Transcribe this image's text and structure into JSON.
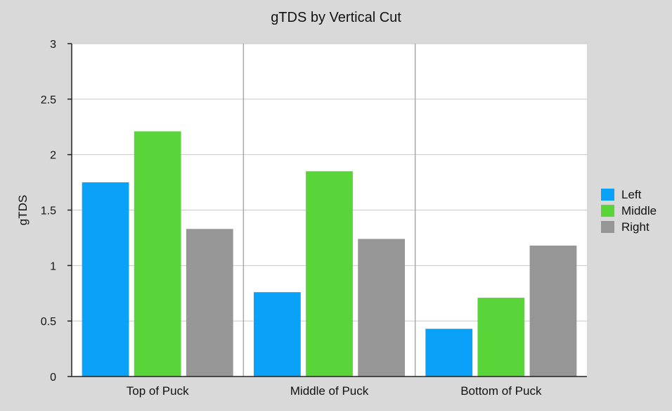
{
  "chart_data": {
    "type": "bar",
    "title": "gTDS by Vertical Cut",
    "xlabel": "",
    "ylabel": "gTDS",
    "ylim": [
      0,
      3
    ],
    "yticks": [
      "0",
      "0.5",
      "1",
      "1.5",
      "2",
      "2.5",
      "3"
    ],
    "categories": [
      "Top of Puck",
      "Middle of Puck",
      "Bottom of Puck"
    ],
    "series": [
      {
        "name": "Left",
        "color": "#0aa2f8",
        "values": [
          1.75,
          0.76,
          0.43
        ]
      },
      {
        "name": "Middle",
        "color": "#5ad539",
        "values": [
          2.21,
          1.85,
          0.71
        ]
      },
      {
        "name": "Right",
        "color": "#969696",
        "values": [
          1.33,
          1.24,
          1.18
        ]
      }
    ],
    "grid": true,
    "legend_position": "right"
  }
}
